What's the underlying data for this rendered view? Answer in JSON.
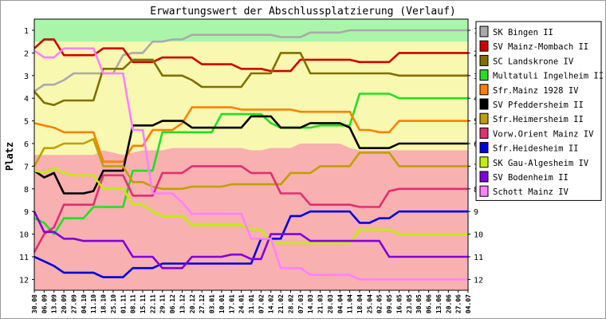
{
  "chart_data": {
    "type": "line",
    "title": "Erwartungswert der Abschlussplatzierung (Verlauf)",
    "ylabel": "Platz",
    "xlabel": "",
    "ylim": [
      1,
      12
    ],
    "y_reversed": true,
    "yticks": [
      1,
      2,
      3,
      4,
      5,
      6,
      7,
      8,
      9,
      10,
      11,
      12
    ],
    "legend_placement": "right",
    "x": [
      "30.08",
      "06.09",
      "13.09",
      "20.09",
      "27.09",
      "04.10",
      "11.10",
      "18.10",
      "25.10",
      "01.11",
      "08.11",
      "15.11",
      "22.11",
      "29.11",
      "06.12",
      "13.12",
      "20.12",
      "27.12",
      "03.01",
      "10.01",
      "17.01",
      "24.01",
      "31.01",
      "07.02",
      "14.02",
      "21.02",
      "28.02",
      "07.03",
      "14.03",
      "21.03",
      "28.03",
      "04.04",
      "11.04",
      "18.04",
      "25.04",
      "02.05",
      "09.05",
      "16.05",
      "23.05",
      "30.05",
      "06.06",
      "13.06",
      "20.06",
      "27.06",
      "04.07"
    ],
    "zones": [
      {
        "name": "green",
        "color": "#aaf5aa",
        "upper": [
          1.5,
          1.5,
          1.5,
          1.5,
          1.5,
          1.5,
          1.5,
          1.5,
          1.5,
          1.5,
          1.5,
          1.5,
          1.5,
          1.5,
          1.5,
          1.5,
          1.5,
          1.5,
          1.5,
          1.5,
          1.5,
          1.5,
          1.5,
          1.5,
          1.5,
          1.5,
          1.5,
          1.5,
          1.5,
          1.5,
          1.5,
          1.5,
          1.5,
          1.5,
          1.5,
          1.5,
          1.5,
          1.5,
          1.5,
          1.5,
          1.5,
          1.5,
          1.5,
          1.5,
          1.5
        ]
      },
      {
        "name": "yellow",
        "color": "#f8f8b0",
        "lower": [
          6.5,
          6.5,
          6.5,
          6.5,
          6.5,
          6.5,
          6.5,
          6.3,
          6.4,
          6.5,
          6.4,
          6.3,
          6.3,
          6.3,
          6.2,
          6.2,
          6.2,
          6.2,
          6.2,
          6.2,
          6.2,
          6.2,
          6.3,
          6.3,
          6.2,
          6.2,
          6.2,
          6.0,
          6.0,
          6.0,
          6.0,
          6.0,
          6.2,
          6.3,
          6.3,
          6.3,
          6.3,
          6.3,
          6.3,
          6.3,
          6.3,
          6.3,
          6.3,
          6.3,
          6.3
        ]
      },
      {
        "name": "red",
        "color": "#f8b0b0"
      }
    ],
    "series": [
      {
        "name": "SK Bingen II",
        "color": "#aaaaaa",
        "values": [
          3.7,
          3.4,
          3.4,
          3.2,
          2.9,
          2.9,
          2.9,
          2.9,
          2.9,
          2.1,
          2.0,
          2.0,
          1.5,
          1.5,
          1.4,
          1.4,
          1.2,
          1.2,
          1.2,
          1.2,
          1.2,
          1.2,
          1.2,
          1.2,
          1.2,
          1.3,
          1.3,
          1.3,
          1.1,
          1.1,
          1.1,
          1.1,
          1.0,
          1.0,
          1.0,
          1.0,
          1.0,
          1.0,
          1.0,
          1.0,
          1.0,
          1.0,
          1.0,
          1.0,
          1.0
        ]
      },
      {
        "name": "SV Mainz-Mombach II",
        "color": "#d00000",
        "values": [
          1.8,
          1.4,
          1.4,
          2.1,
          2.1,
          2.1,
          2.1,
          1.8,
          1.8,
          1.8,
          2.4,
          2.4,
          2.4,
          2.2,
          2.2,
          2.2,
          2.2,
          2.5,
          2.5,
          2.5,
          2.5,
          2.7,
          2.7,
          2.7,
          2.8,
          2.8,
          2.8,
          2.3,
          2.3,
          2.3,
          2.3,
          2.3,
          2.3,
          2.4,
          2.4,
          2.4,
          2.4,
          2.0,
          2.0,
          2.0,
          2.0,
          2.0,
          2.0,
          2.0,
          2.0
        ]
      },
      {
        "name": "SC Landskrone IV",
        "color": "#807000",
        "values": [
          3.7,
          4.2,
          4.3,
          4.1,
          4.1,
          4.1,
          4.1,
          2.7,
          2.7,
          2.7,
          2.3,
          2.3,
          2.3,
          3.0,
          3.0,
          3.0,
          3.2,
          3.5,
          3.5,
          3.5,
          3.5,
          3.5,
          2.9,
          2.9,
          2.9,
          2.0,
          2.0,
          2.0,
          2.9,
          2.9,
          2.9,
          2.9,
          2.9,
          2.9,
          2.9,
          2.9,
          2.9,
          3.0,
          3.0,
          3.0,
          3.0,
          3.0,
          3.0,
          3.0,
          3.0
        ]
      },
      {
        "name": "Multatuli Ingelheim II",
        "color": "#20e020",
        "values": [
          9.3,
          9.5,
          10.0,
          9.3,
          9.3,
          9.3,
          8.8,
          8.8,
          8.8,
          8.8,
          7.2,
          7.2,
          7.2,
          5.5,
          5.5,
          5.5,
          5.5,
          5.5,
          5.5,
          4.7,
          4.7,
          4.7,
          4.7,
          4.7,
          5.1,
          5.3,
          5.3,
          5.3,
          5.3,
          5.2,
          5.2,
          5.2,
          5.2,
          3.8,
          3.8,
          3.8,
          3.8,
          4.0,
          4.0,
          4.0,
          4.0,
          4.0,
          4.0,
          4.0,
          4.0
        ]
      },
      {
        "name": "Sfr.Mainz 1928 IV",
        "color": "#ff8000",
        "values": [
          5.1,
          5.2,
          5.3,
          5.5,
          5.5,
          5.5,
          5.5,
          6.8,
          6.8,
          6.8,
          6.1,
          6.1,
          5.4,
          5.4,
          5.4,
          5.1,
          4.4,
          4.4,
          4.4,
          4.4,
          4.4,
          4.5,
          4.5,
          4.5,
          4.5,
          4.5,
          4.5,
          4.6,
          4.6,
          4.6,
          4.6,
          4.6,
          4.6,
          5.4,
          5.4,
          5.5,
          5.5,
          5.0,
          5.0,
          5.0,
          5.0,
          5.0,
          5.0,
          5.0,
          5.0
        ]
      },
      {
        "name": "SV Pfeddersheim II",
        "color": "#000000",
        "values": [
          7.2,
          7.5,
          7.3,
          8.2,
          8.2,
          8.2,
          8.1,
          7.2,
          7.2,
          7.2,
          5.2,
          5.2,
          5.2,
          5.0,
          5.0,
          5.0,
          5.3,
          5.3,
          5.3,
          5.3,
          5.3,
          5.3,
          4.8,
          4.8,
          4.8,
          5.3,
          5.3,
          5.3,
          5.1,
          5.1,
          5.1,
          5.1,
          5.3,
          6.2,
          6.2,
          6.2,
          6.2,
          6.0,
          6.0,
          6.0,
          6.0,
          6.0,
          6.0,
          6.0,
          6.0
        ]
      },
      {
        "name": "Sfr.Heimersheim II",
        "color": "#c0a000",
        "values": [
          7.0,
          6.2,
          6.2,
          6.0,
          6.0,
          6.0,
          5.8,
          7.0,
          7.0,
          7.0,
          7.7,
          7.7,
          7.9,
          8.0,
          8.0,
          8.0,
          7.9,
          7.9,
          7.9,
          7.9,
          7.8,
          7.8,
          7.8,
          7.8,
          7.8,
          7.8,
          7.3,
          7.3,
          7.3,
          7.0,
          7.0,
          7.0,
          7.0,
          6.4,
          6.4,
          6.4,
          6.4,
          7.0,
          7.0,
          7.0,
          7.0,
          7.0,
          7.0,
          7.0,
          7.0
        ]
      },
      {
        "name": "Vorw.Orient Mainz IV",
        "color": "#e03070",
        "values": [
          10.8,
          10.0,
          9.7,
          8.7,
          8.7,
          8.7,
          8.7,
          7.4,
          7.4,
          7.4,
          8.3,
          8.3,
          8.3,
          7.3,
          7.3,
          7.3,
          7.0,
          7.0,
          7.0,
          7.0,
          7.0,
          7.0,
          7.3,
          7.3,
          7.3,
          8.2,
          8.2,
          8.2,
          8.7,
          8.7,
          8.7,
          8.7,
          8.7,
          8.8,
          8.8,
          8.8,
          8.1,
          8.0,
          8.0,
          8.0,
          8.0,
          8.0,
          8.0,
          8.0,
          8.0
        ]
      },
      {
        "name": "Sfr.Heidesheim II",
        "color": "#0000e0",
        "values": [
          11.0,
          11.2,
          11.4,
          11.7,
          11.7,
          11.7,
          11.7,
          11.9,
          11.9,
          11.9,
          11.5,
          11.5,
          11.5,
          11.3,
          11.3,
          11.3,
          11.3,
          11.3,
          11.3,
          11.3,
          11.3,
          11.3,
          11.3,
          10.2,
          10.2,
          10.2,
          9.2,
          9.2,
          9.0,
          9.0,
          9.0,
          9.0,
          9.0,
          9.5,
          9.5,
          9.3,
          9.3,
          9.0,
          9.0,
          9.0,
          9.0,
          9.0,
          9.0,
          9.0,
          9.0
        ]
      },
      {
        "name": "SK Gau-Algesheim IV",
        "color": "#c0f000",
        "values": [
          7.2,
          7.3,
          7.1,
          7.3,
          7.4,
          7.4,
          7.4,
          8.0,
          8.0,
          8.0,
          8.7,
          8.7,
          9.0,
          9.2,
          9.2,
          9.2,
          9.6,
          9.6,
          9.6,
          9.6,
          9.6,
          9.6,
          9.8,
          9.8,
          10.4,
          10.4,
          10.4,
          10.4,
          10.4,
          10.4,
          10.4,
          10.4,
          10.4,
          9.8,
          9.8,
          9.8,
          9.8,
          10.0,
          10.0,
          10.0,
          10.0,
          10.0,
          10.0,
          10.0,
          10.0
        ]
      },
      {
        "name": "SV Bodenheim II",
        "color": "#8000e0",
        "values": [
          9.0,
          9.9,
          9.9,
          10.2,
          10.2,
          10.3,
          10.3,
          10.3,
          10.3,
          10.3,
          11.0,
          11.0,
          11.0,
          11.5,
          11.5,
          11.5,
          11.0,
          11.0,
          11.0,
          11.0,
          10.9,
          10.9,
          11.1,
          11.1,
          10.0,
          10.0,
          10.0,
          10.0,
          10.3,
          10.3,
          10.3,
          10.3,
          10.3,
          10.3,
          10.3,
          10.3,
          11.0,
          11.0,
          11.0,
          11.0,
          11.0,
          11.0,
          11.0,
          11.0,
          11.0
        ]
      },
      {
        "name": "Schott Mainz IV",
        "color": "#ff80ff",
        "values": [
          1.9,
          2.2,
          2.2,
          1.8,
          1.8,
          1.8,
          1.8,
          2.9,
          2.9,
          2.9,
          5.4,
          5.4,
          8.2,
          8.2,
          8.2,
          8.6,
          9.1,
          9.1,
          9.1,
          9.1,
          9.1,
          9.1,
          10.2,
          10.2,
          10.2,
          11.5,
          11.5,
          11.5,
          11.8,
          11.8,
          11.8,
          11.8,
          11.8,
          12.0,
          12.0,
          12.0,
          12.0,
          12.0,
          12.0,
          12.0,
          12.0,
          12.0,
          12.0,
          12.0,
          12.0
        ]
      }
    ]
  }
}
